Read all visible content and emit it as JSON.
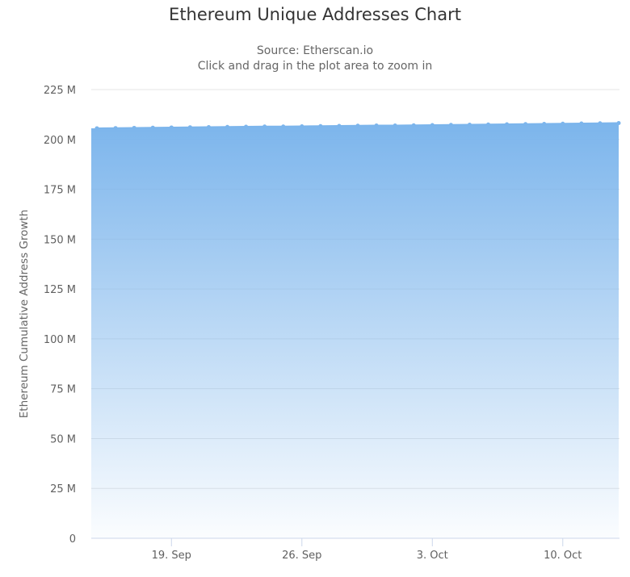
{
  "chart_data": {
    "type": "area",
    "title": "Ethereum Unique Addresses Chart",
    "subtitle": "Source: Etherscan.io",
    "subtitle2": "Click and drag in the plot area to zoom in",
    "xlabel": "",
    "ylabel": "Ethereum Cumulative Address Growth",
    "ylim": [
      0,
      225
    ],
    "y_unit": "M",
    "y_ticks": [
      "0",
      "25 M",
      "50 M",
      "75 M",
      "100 M",
      "125 M",
      "150 M",
      "175 M",
      "200 M",
      "225 M"
    ],
    "x_ticks": [
      "19. Sep",
      "26. Sep",
      "3. Oct",
      "10. Oct"
    ],
    "grid": true,
    "legend": false,
    "color": "#7cb5ec",
    "x": [
      "15 Sep",
      "16 Sep",
      "17 Sep",
      "18 Sep",
      "19 Sep",
      "20 Sep",
      "21 Sep",
      "22 Sep",
      "23 Sep",
      "24 Sep",
      "25 Sep",
      "26 Sep",
      "27 Sep",
      "28 Sep",
      "29 Sep",
      "30 Sep",
      "1 Oct",
      "2 Oct",
      "3 Oct",
      "4 Oct",
      "5 Oct",
      "6 Oct",
      "7 Oct",
      "8 Oct",
      "9 Oct",
      "10 Oct",
      "11 Oct",
      "12 Oct",
      "13 Oct"
    ],
    "series": [
      {
        "name": "Ethereum Cumulative Address Growth",
        "values": [
          205.6,
          205.7,
          205.8,
          205.9,
          206.0,
          206.1,
          206.2,
          206.3,
          206.4,
          206.5,
          206.5,
          206.6,
          206.7,
          206.8,
          206.9,
          207.0,
          207.0,
          207.1,
          207.2,
          207.3,
          207.4,
          207.5,
          207.6,
          207.7,
          207.8,
          207.9,
          208.0,
          208.1,
          208.2
        ]
      }
    ]
  }
}
